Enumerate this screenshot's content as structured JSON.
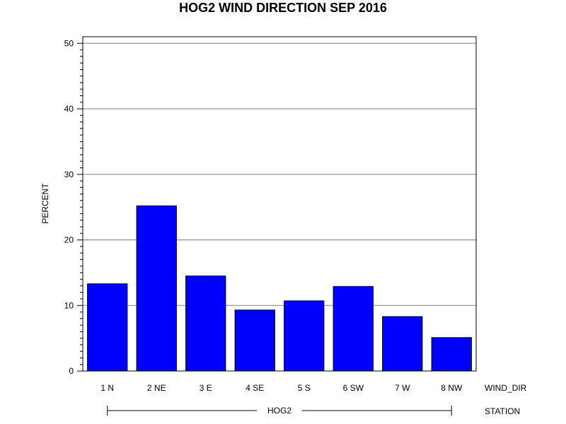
{
  "chart_data": {
    "type": "bar",
    "title": "HOG2 WIND DIRECTION SEP 2016",
    "ylabel": "PERCENT",
    "xlabel": "WIND_DIR",
    "group_axis_label": "STATION",
    "group": "HOG2",
    "categories": [
      "1 N",
      "2 NE",
      "3 E",
      "4 SE",
      "5 S",
      "6 SW",
      "7 W",
      "8 NW"
    ],
    "values": [
      13.3,
      25.2,
      14.5,
      9.3,
      10.7,
      12.9,
      8.3,
      5.1
    ],
    "ylim": [
      0,
      51
    ],
    "yticks": [
      0,
      10,
      20,
      30,
      40,
      50
    ],
    "grid": true,
    "bar_color": "#0000FF",
    "bar_edge_color": "#000000"
  }
}
